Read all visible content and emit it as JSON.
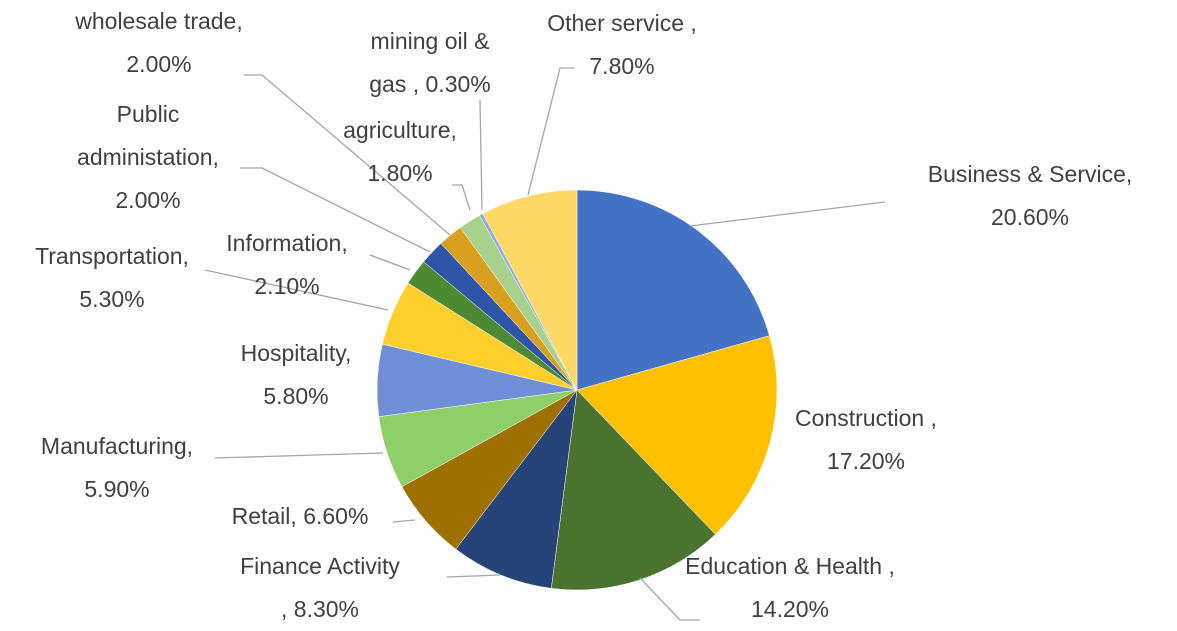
{
  "chart_data": {
    "type": "pie",
    "categories": [
      "Business & Service,",
      "Construction ,",
      "Education & Health ,",
      "Finance Activity",
      "Retail,",
      "Manufacturing,",
      "Hospitality,",
      "Transportation,",
      "Information,",
      "Public administation,",
      "wholesale trade,",
      "agriculture,",
      "mining oil & gas ,",
      "Other service ,"
    ],
    "values": [
      20.6,
      17.2,
      14.2,
      8.3,
      6.6,
      5.9,
      5.8,
      5.3,
      2.1,
      2.0,
      2.0,
      1.8,
      0.3,
      7.8
    ],
    "value_labels": [
      "20.60%",
      "17.20%",
      "14.20%",
      ", 8.30%",
      "6.60%",
      "5.90%",
      "5.80%",
      "5.30%",
      "2.10%",
      "2.00%",
      "2.00%",
      "1.80%",
      "0.30%",
      "7.80%"
    ],
    "colors": [
      "#4472c4",
      "#ffc000",
      "#4a7330",
      "#264478",
      "#9e7000",
      "#8fcf6a",
      "#6f8fd6",
      "#ffcf2e",
      "#4e8a34",
      "#2f55a8",
      "#d9a020",
      "#a9d18e",
      "#8faadc",
      "#ffd966"
    ]
  }
}
